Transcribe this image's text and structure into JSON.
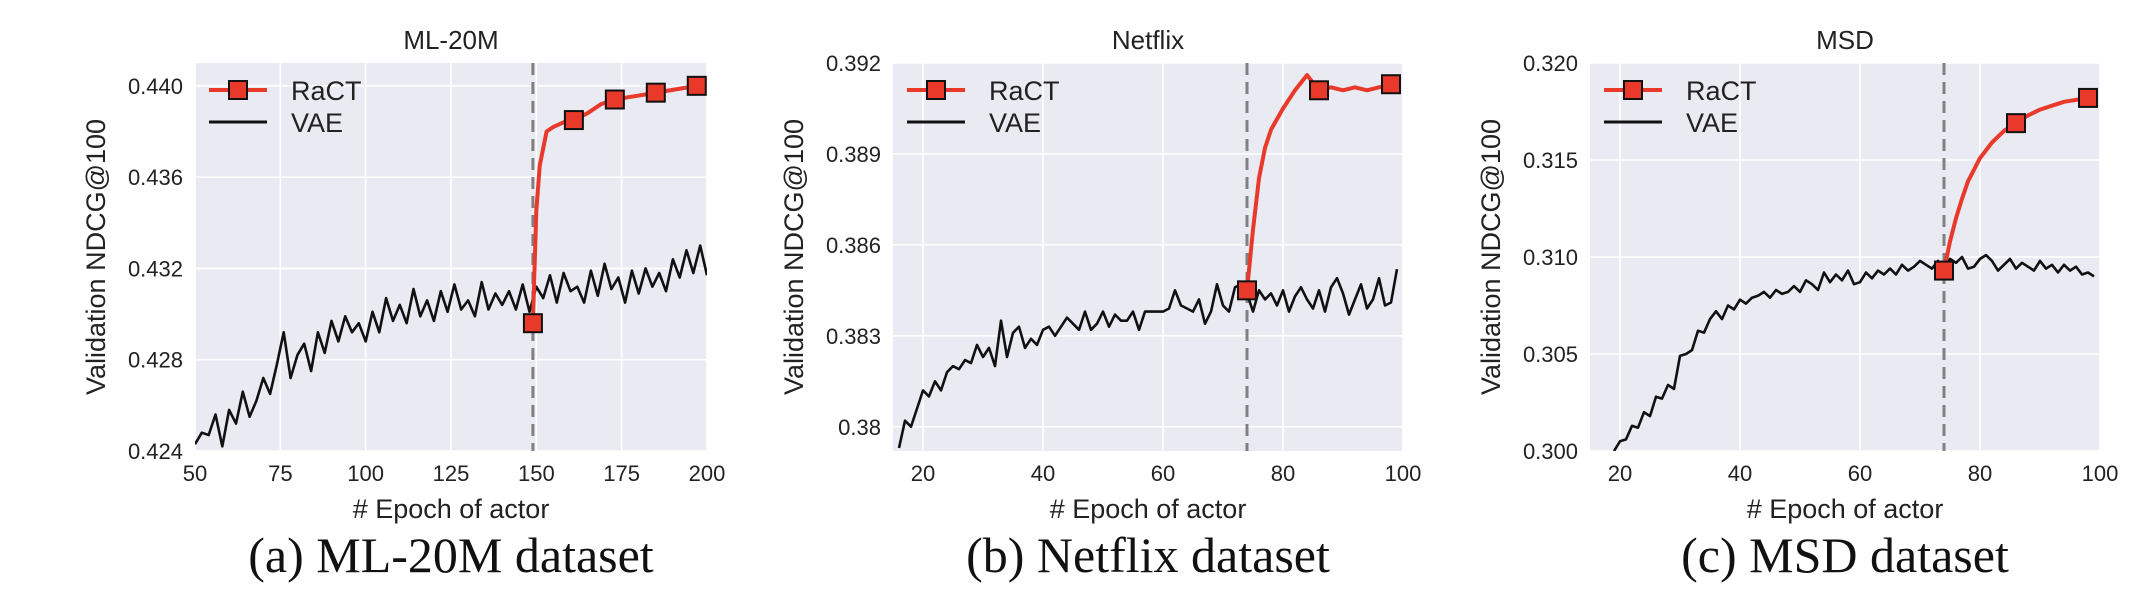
{
  "figure": {
    "colors": {
      "ract": "#e8392b",
      "vae": "#111111",
      "panel_bg": "#eaeaf2",
      "grid": "#ffffff",
      "divider": "#808080"
    }
  },
  "chart_data": [
    {
      "type": "line",
      "title": "ML-20M",
      "caption": "(a) ML-20M dataset",
      "xlabel": "# Epoch of actor",
      "ylabel": "Validation NDCG@100",
      "xlim": [
        50,
        200
      ],
      "ylim": [
        0.424,
        0.441
      ],
      "xticks": [
        50,
        75,
        100,
        125,
        150,
        175,
        200
      ],
      "xtick_labels": [
        "50",
        "75",
        "100",
        "125",
        "150",
        "175",
        "200"
      ],
      "yticks": [
        0.424,
        0.428,
        0.432,
        0.436,
        0.44
      ],
      "ytick_labels": [
        "0.424",
        "0.428",
        "0.432",
        "0.436",
        "0.440"
      ],
      "divider_x": 149,
      "grid": true,
      "legend_position": "top-left",
      "series": [
        {
          "name": "RaCT",
          "marker": "square",
          "x": [
            149,
            150,
            151,
            153,
            155,
            158,
            161,
            165,
            169,
            173,
            177,
            181,
            185,
            189,
            193,
            197
          ],
          "y": [
            0.4296,
            0.4345,
            0.4365,
            0.438,
            0.4382,
            0.4384,
            0.4385,
            0.4388,
            0.4392,
            0.4394,
            0.4395,
            0.4396,
            0.4397,
            0.4398,
            0.4399,
            0.44
          ],
          "marker_x": [
            149,
            161,
            173,
            185,
            197
          ],
          "marker_y": [
            0.4296,
            0.4385,
            0.4394,
            0.4397,
            0.44
          ]
        },
        {
          "name": "VAE",
          "marker": "none",
          "x": [
            50,
            52,
            54,
            56,
            58,
            60,
            62,
            64,
            66,
            68,
            70,
            72,
            74,
            76,
            78,
            80,
            82,
            84,
            86,
            88,
            90,
            92,
            94,
            96,
            98,
            100,
            102,
            104,
            106,
            108,
            110,
            112,
            114,
            116,
            118,
            120,
            122,
            124,
            126,
            128,
            130,
            132,
            134,
            136,
            138,
            140,
            142,
            144,
            146,
            148,
            150,
            152,
            154,
            156,
            158,
            160,
            162,
            164,
            166,
            168,
            170,
            172,
            174,
            176,
            178,
            180,
            182,
            184,
            186,
            188,
            190,
            192,
            194,
            196,
            198,
            200
          ],
          "y": [
            0.4243,
            0.4248,
            0.4247,
            0.4256,
            0.4242,
            0.4258,
            0.4252,
            0.4266,
            0.4255,
            0.4262,
            0.4272,
            0.4265,
            0.4278,
            0.4292,
            0.4272,
            0.4282,
            0.4287,
            0.4275,
            0.4292,
            0.4283,
            0.4297,
            0.4288,
            0.4299,
            0.4292,
            0.4296,
            0.4288,
            0.4301,
            0.4292,
            0.4307,
            0.4297,
            0.4304,
            0.4296,
            0.4311,
            0.4299,
            0.4306,
            0.4297,
            0.431,
            0.4301,
            0.4313,
            0.4302,
            0.4306,
            0.4299,
            0.4314,
            0.4302,
            0.4309,
            0.4304,
            0.431,
            0.4302,
            0.4313,
            0.4301,
            0.4312,
            0.4307,
            0.4317,
            0.4305,
            0.4318,
            0.431,
            0.4312,
            0.4305,
            0.4319,
            0.4308,
            0.4322,
            0.4311,
            0.4316,
            0.4305,
            0.4319,
            0.4309,
            0.432,
            0.4312,
            0.4318,
            0.431,
            0.4324,
            0.4316,
            0.4328,
            0.4318,
            0.433,
            0.4317
          ]
        }
      ]
    },
    {
      "type": "line",
      "title": "Netflix",
      "caption": "(b) Netflix dataset",
      "xlabel": "# Epoch of actor",
      "ylabel": "Validation NDCG@100",
      "xlim": [
        15,
        100
      ],
      "ylim": [
        0.3792,
        0.392
      ],
      "xticks": [
        20,
        40,
        60,
        80,
        100
      ],
      "xtick_labels": [
        "20",
        "40",
        "60",
        "80",
        "100"
      ],
      "yticks": [
        0.38,
        0.383,
        0.386,
        0.389,
        0.392
      ],
      "ytick_labels": [
        "0.38",
        "0.383",
        "0.386",
        "0.389",
        "0.392"
      ],
      "divider_x": 74,
      "grid": true,
      "legend_position": "top-left",
      "series": [
        {
          "name": "RaCT",
          "marker": "square",
          "x": [
            74,
            74.5,
            75,
            76,
            77,
            78,
            80,
            82,
            84,
            86,
            88,
            90,
            92,
            94,
            96,
            98
          ],
          "y": [
            0.3845,
            0.3855,
            0.3865,
            0.3882,
            0.3892,
            0.3898,
            0.3905,
            0.3911,
            0.3916,
            0.3911,
            0.3912,
            0.3911,
            0.3912,
            0.3911,
            0.3912,
            0.3913
          ],
          "marker_x": [
            74,
            86,
            98
          ],
          "marker_y": [
            0.3845,
            0.3911,
            0.3913
          ]
        },
        {
          "name": "VAE",
          "marker": "none",
          "x": [
            16,
            17,
            18,
            19,
            20,
            21,
            22,
            23,
            24,
            25,
            26,
            27,
            28,
            29,
            30,
            31,
            32,
            33,
            34,
            35,
            36,
            37,
            38,
            39,
            40,
            41,
            42,
            43,
            44,
            45,
            46,
            47,
            48,
            49,
            50,
            51,
            52,
            53,
            54,
            55,
            56,
            57,
            58,
            59,
            60,
            61,
            62,
            63,
            64,
            65,
            66,
            67,
            68,
            69,
            70,
            71,
            72,
            73,
            74,
            75,
            76,
            77,
            78,
            79,
            80,
            81,
            82,
            83,
            84,
            85,
            86,
            87,
            88,
            89,
            90,
            91,
            92,
            93,
            94,
            95,
            96,
            97,
            98,
            99
          ],
          "y": [
            0.3793,
            0.3802,
            0.38,
            0.3806,
            0.3812,
            0.381,
            0.3815,
            0.3812,
            0.3818,
            0.382,
            0.3819,
            0.3822,
            0.3821,
            0.3827,
            0.3823,
            0.3826,
            0.382,
            0.3835,
            0.3823,
            0.3831,
            0.3833,
            0.3826,
            0.3829,
            0.3827,
            0.3832,
            0.3833,
            0.383,
            0.3833,
            0.3836,
            0.3834,
            0.3832,
            0.3838,
            0.3832,
            0.3834,
            0.3838,
            0.3833,
            0.3837,
            0.3835,
            0.3835,
            0.3838,
            0.3832,
            0.3838,
            0.3838,
            0.3838,
            0.3838,
            0.3839,
            0.3845,
            0.384,
            0.3839,
            0.3838,
            0.3842,
            0.3834,
            0.3838,
            0.3847,
            0.384,
            0.3838,
            0.3846,
            0.3847,
            0.3844,
            0.3838,
            0.3845,
            0.3842,
            0.3844,
            0.384,
            0.3845,
            0.3838,
            0.3843,
            0.3846,
            0.3842,
            0.3839,
            0.3845,
            0.3838,
            0.3846,
            0.3849,
            0.3844,
            0.3837,
            0.3842,
            0.3847,
            0.3839,
            0.3842,
            0.3849,
            0.384,
            0.3841,
            0.3852
          ]
        }
      ]
    },
    {
      "type": "line",
      "title": "MSD",
      "caption": "(c) MSD dataset",
      "xlabel": "# Epoch of actor",
      "ylabel": "Validation NDCG@100",
      "xlim": [
        15,
        100
      ],
      "ylim": [
        0.3,
        0.32
      ],
      "xticks": [
        20,
        40,
        60,
        80,
        100
      ],
      "xtick_labels": [
        "20",
        "40",
        "60",
        "80",
        "100"
      ],
      "yticks": [
        0.3,
        0.305,
        0.31,
        0.315,
        0.32
      ],
      "ytick_labels": [
        "0.300",
        "0.305",
        "0.310",
        "0.315",
        "0.320"
      ],
      "divider_x": 74,
      "grid": true,
      "legend_position": "top-left",
      "series": [
        {
          "name": "RaCT",
          "marker": "square",
          "x": [
            74,
            75,
            76,
            77,
            78,
            80,
            82,
            84,
            86,
            88,
            90,
            92,
            94,
            96,
            98
          ],
          "y": [
            0.3093,
            0.3108,
            0.312,
            0.313,
            0.3139,
            0.3151,
            0.3159,
            0.3165,
            0.3169,
            0.3173,
            0.3176,
            0.3178,
            0.318,
            0.3181,
            0.3182
          ],
          "marker_x": [
            74,
            86,
            98
          ],
          "marker_y": [
            0.3093,
            0.3169,
            0.3182
          ]
        },
        {
          "name": "VAE",
          "marker": "none",
          "x": [
            19,
            20,
            21,
            22,
            23,
            24,
            25,
            26,
            27,
            28,
            29,
            30,
            31,
            32,
            33,
            34,
            35,
            36,
            37,
            38,
            39,
            40,
            41,
            42,
            43,
            44,
            45,
            46,
            47,
            48,
            49,
            50,
            51,
            52,
            53,
            54,
            55,
            56,
            57,
            58,
            59,
            60,
            61,
            62,
            63,
            64,
            65,
            66,
            67,
            68,
            69,
            70,
            71,
            72,
            73,
            74,
            75,
            76,
            77,
            78,
            79,
            80,
            81,
            82,
            83,
            84,
            85,
            86,
            87,
            88,
            89,
            90,
            91,
            92,
            93,
            94,
            95,
            96,
            97,
            98,
            99
          ],
          "y": [
            0.3,
            0.3005,
            0.3006,
            0.3013,
            0.3012,
            0.302,
            0.3018,
            0.3028,
            0.3027,
            0.3034,
            0.3032,
            0.3049,
            0.305,
            0.3052,
            0.3062,
            0.3061,
            0.3068,
            0.3072,
            0.3068,
            0.3075,
            0.3073,
            0.3078,
            0.3076,
            0.3079,
            0.308,
            0.3082,
            0.3079,
            0.3083,
            0.3081,
            0.3082,
            0.3085,
            0.3082,
            0.3088,
            0.3086,
            0.3083,
            0.3092,
            0.3087,
            0.3091,
            0.3088,
            0.3093,
            0.3086,
            0.3087,
            0.3092,
            0.3089,
            0.3093,
            0.3091,
            0.3094,
            0.3091,
            0.3096,
            0.3093,
            0.3095,
            0.3098,
            0.3096,
            0.3094,
            0.3098,
            0.3095,
            0.3099,
            0.3097,
            0.31,
            0.3094,
            0.3095,
            0.3099,
            0.3101,
            0.3098,
            0.3093,
            0.3096,
            0.3099,
            0.3094,
            0.3097,
            0.3095,
            0.3093,
            0.3098,
            0.3094,
            0.3096,
            0.3092,
            0.3096,
            0.3093,
            0.3095,
            0.3091,
            0.3092,
            0.309
          ]
        }
      ]
    }
  ]
}
